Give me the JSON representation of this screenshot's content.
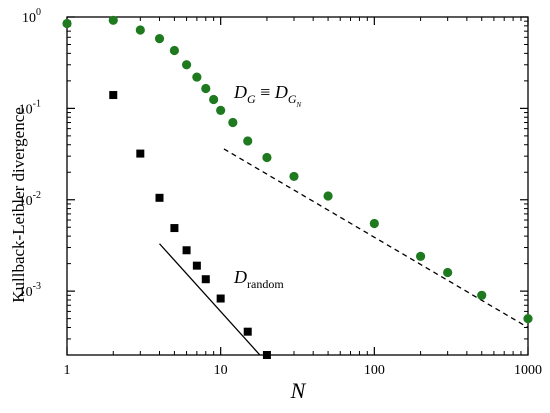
{
  "chart_data": {
    "type": "scatter",
    "xscale": "log",
    "yscale": "log",
    "xlim": [
      1,
      1000
    ],
    "ylim": [
      0.0002,
      1
    ],
    "grid": false,
    "xlabel": "N",
    "ylabel": "Kullback-Leibler divergence",
    "x_ticks": [
      {
        "value": 1,
        "label": "1"
      },
      {
        "value": 10,
        "label": "10"
      },
      {
        "value": 100,
        "label": "100"
      },
      {
        "value": 1000,
        "label": "1000"
      }
    ],
    "y_ticks": [
      {
        "value": 1,
        "base": "10",
        "exp": "0"
      },
      {
        "value": 0.1,
        "base": "10",
        "exp": "-1"
      },
      {
        "value": 0.01,
        "base": "10",
        "exp": "-2"
      },
      {
        "value": 0.001,
        "base": "10",
        "exp": "-3"
      }
    ],
    "series": [
      {
        "name": "D_G ≡ D_G_N",
        "marker": "circle",
        "color": "#1f7a1f",
        "points": [
          {
            "x": 1,
            "y": 0.85
          },
          {
            "x": 2,
            "y": 0.92
          },
          {
            "x": 3,
            "y": 0.72
          },
          {
            "x": 4,
            "y": 0.58
          },
          {
            "x": 5,
            "y": 0.43
          },
          {
            "x": 6,
            "y": 0.3
          },
          {
            "x": 7,
            "y": 0.22
          },
          {
            "x": 8,
            "y": 0.165
          },
          {
            "x": 9,
            "y": 0.125
          },
          {
            "x": 10,
            "y": 0.095
          },
          {
            "x": 12,
            "y": 0.07
          },
          {
            "x": 15,
            "y": 0.044
          },
          {
            "x": 20,
            "y": 0.029
          },
          {
            "x": 30,
            "y": 0.018
          },
          {
            "x": 50,
            "y": 0.011
          },
          {
            "x": 100,
            "y": 0.0055
          },
          {
            "x": 200,
            "y": 0.0024
          },
          {
            "x": 300,
            "y": 0.0016
          },
          {
            "x": 500,
            "y": 0.0009
          },
          {
            "x": 1000,
            "y": 0.0005
          }
        ]
      },
      {
        "name": "D_random",
        "marker": "square",
        "color": "#000000",
        "points": [
          {
            "x": 2,
            "y": 0.14
          },
          {
            "x": 3,
            "y": 0.032
          },
          {
            "x": 4,
            "y": 0.0105
          },
          {
            "x": 5,
            "y": 0.0049
          },
          {
            "x": 6,
            "y": 0.0028
          },
          {
            "x": 7,
            "y": 0.0019
          },
          {
            "x": 8,
            "y": 0.00135
          },
          {
            "x": 10,
            "y": 0.00083
          },
          {
            "x": 15,
            "y": 0.00036
          },
          {
            "x": 20,
            "y": 0.0002
          }
        ]
      }
    ],
    "reference_lines": [
      {
        "style": "dashed",
        "from": {
          "x": 10.5,
          "y": 0.036
        },
        "to": {
          "x": 1000,
          "y": 0.0004
        }
      },
      {
        "style": "solid",
        "from": {
          "x": 4.0,
          "y": 0.0033
        },
        "to": {
          "x": 18.0,
          "y": 0.0002
        }
      }
    ],
    "annotations": [
      {
        "id": "dg",
        "main": "D",
        "sub1": "G",
        "mid": " ≡ ",
        "main2": "D",
        "sub2": "G",
        "subsub2": "N"
      },
      {
        "id": "drandom",
        "main": "D",
        "sub": "random"
      }
    ]
  }
}
